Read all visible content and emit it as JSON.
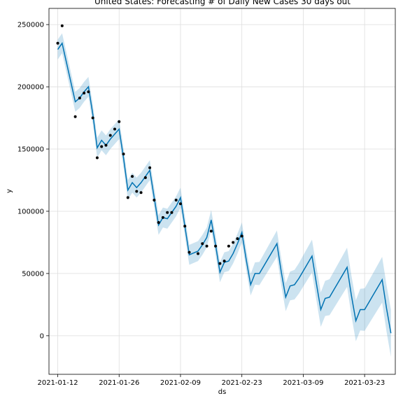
{
  "chart_data": {
    "type": "line",
    "title": "United States: Forecasting # of Daily New Cases 30 days out",
    "xlabel": "ds",
    "ylabel": "y",
    "grid": true,
    "x_ticks": [
      "2021-01-12",
      "2021-01-26",
      "2021-02-09",
      "2021-02-23",
      "2021-03-09",
      "2021-03-23"
    ],
    "y_ticks": [
      0,
      50000,
      100000,
      150000,
      200000,
      250000
    ],
    "xlim": [
      "2021-01-10",
      "2021-03-30"
    ],
    "ylim": [
      -31000,
      263000
    ],
    "colors": {
      "line": "#0072B2",
      "band": "#0072B2",
      "points": "#000000"
    },
    "series": [
      {
        "kind": "actual",
        "points": [
          [
            "2021-01-12",
            235000
          ],
          [
            "2021-01-13",
            249000
          ],
          [
            "2021-01-16",
            176000
          ],
          [
            "2021-01-17",
            191000
          ],
          [
            "2021-01-18",
            195000
          ],
          [
            "2021-01-19",
            196000
          ],
          [
            "2021-01-20",
            175000
          ],
          [
            "2021-01-21",
            143000
          ],
          [
            "2021-01-22",
            152000
          ],
          [
            "2021-01-23",
            153000
          ],
          [
            "2021-01-24",
            161000
          ],
          [
            "2021-01-25",
            166000
          ],
          [
            "2021-01-26",
            172000
          ],
          [
            "2021-01-27",
            146000
          ],
          [
            "2021-01-28",
            111000
          ],
          [
            "2021-01-29",
            128000
          ],
          [
            "2021-01-30",
            116000
          ],
          [
            "2021-01-31",
            115000
          ],
          [
            "2021-02-01",
            127000
          ],
          [
            "2021-02-02",
            135000
          ],
          [
            "2021-02-03",
            109000
          ],
          [
            "2021-02-04",
            91000
          ],
          [
            "2021-02-05",
            95000
          ],
          [
            "2021-02-06",
            99000
          ],
          [
            "2021-02-07",
            99000
          ],
          [
            "2021-02-08",
            109000
          ],
          [
            "2021-02-09",
            106000
          ],
          [
            "2021-02-10",
            88000
          ],
          [
            "2021-02-11",
            67000
          ],
          [
            "2021-02-13",
            66000
          ],
          [
            "2021-02-14",
            74000
          ],
          [
            "2021-02-15",
            72000
          ],
          [
            "2021-02-16",
            84000
          ],
          [
            "2021-02-17",
            72000
          ],
          [
            "2021-02-18",
            58000
          ],
          [
            "2021-02-19",
            60000
          ],
          [
            "2021-02-20",
            72000
          ],
          [
            "2021-02-21",
            75000
          ],
          [
            "2021-02-22",
            78000
          ],
          [
            "2021-02-23",
            80000
          ]
        ]
      },
      {
        "kind": "forecast",
        "points": [
          [
            "2021-01-12",
            230000
          ],
          [
            "2021-01-13",
            235000
          ],
          [
            "2021-01-16",
            188000
          ],
          [
            "2021-01-17",
            191000
          ],
          [
            "2021-01-18",
            196000
          ],
          [
            "2021-01-19",
            200000
          ],
          [
            "2021-01-20",
            178000
          ],
          [
            "2021-01-21",
            151000
          ],
          [
            "2021-01-22",
            157000
          ],
          [
            "2021-01-23",
            153000
          ],
          [
            "2021-01-24",
            158000
          ],
          [
            "2021-01-25",
            162000
          ],
          [
            "2021-01-26",
            166000
          ],
          [
            "2021-01-27",
            143000
          ],
          [
            "2021-01-28",
            117000
          ],
          [
            "2021-01-29",
            123000
          ],
          [
            "2021-01-30",
            119000
          ],
          [
            "2021-01-31",
            123000
          ],
          [
            "2021-02-01",
            128000
          ],
          [
            "2021-02-02",
            133000
          ],
          [
            "2021-02-03",
            111000
          ],
          [
            "2021-02-04",
            89000
          ],
          [
            "2021-02-05",
            95000
          ],
          [
            "2021-02-06",
            94000
          ],
          [
            "2021-02-07",
            99000
          ],
          [
            "2021-02-08",
            104000
          ],
          [
            "2021-02-09",
            111000
          ],
          [
            "2021-02-10",
            88000
          ],
          [
            "2021-02-11",
            65000
          ],
          [
            "2021-02-13",
            68000
          ],
          [
            "2021-02-14",
            73000
          ],
          [
            "2021-02-15",
            79000
          ],
          [
            "2021-02-16",
            93000
          ],
          [
            "2021-02-17",
            73000
          ],
          [
            "2021-02-18",
            51000
          ],
          [
            "2021-02-19",
            59000
          ],
          [
            "2021-02-20",
            60000
          ],
          [
            "2021-02-21",
            66000
          ],
          [
            "2021-02-22",
            74000
          ],
          [
            "2021-02-23",
            83000
          ],
          [
            "2021-02-24",
            61000
          ],
          [
            "2021-02-25",
            41000
          ],
          [
            "2021-02-26",
            50000
          ],
          [
            "2021-02-27",
            50000
          ],
          [
            "2021-02-28",
            56000
          ],
          [
            "2021-03-01",
            62000
          ],
          [
            "2021-03-02",
            68000
          ],
          [
            "2021-03-03",
            74000
          ],
          [
            "2021-03-04",
            51000
          ],
          [
            "2021-03-05",
            31000
          ],
          [
            "2021-03-06",
            40000
          ],
          [
            "2021-03-07",
            41000
          ],
          [
            "2021-03-08",
            46000
          ],
          [
            "2021-03-09",
            52000
          ],
          [
            "2021-03-10",
            58000
          ],
          [
            "2021-03-11",
            64000
          ],
          [
            "2021-03-12",
            42000
          ],
          [
            "2021-03-13",
            21000
          ],
          [
            "2021-03-14",
            30000
          ],
          [
            "2021-03-15",
            31000
          ],
          [
            "2021-03-16",
            37000
          ],
          [
            "2021-03-17",
            43000
          ],
          [
            "2021-03-18",
            49000
          ],
          [
            "2021-03-19",
            55000
          ],
          [
            "2021-03-20",
            32000
          ],
          [
            "2021-03-21",
            12000
          ],
          [
            "2021-03-22",
            21000
          ],
          [
            "2021-03-23",
            21000
          ],
          [
            "2021-03-24",
            27000
          ],
          [
            "2021-03-25",
            33000
          ],
          [
            "2021-03-26",
            39000
          ],
          [
            "2021-03-27",
            45000
          ],
          [
            "2021-03-28",
            22000
          ],
          [
            "2021-03-29",
            2000
          ]
        ]
      }
    ],
    "uncertainty_halfwidth": 8000,
    "uncertainty_halfwidth_end": 19000
  }
}
